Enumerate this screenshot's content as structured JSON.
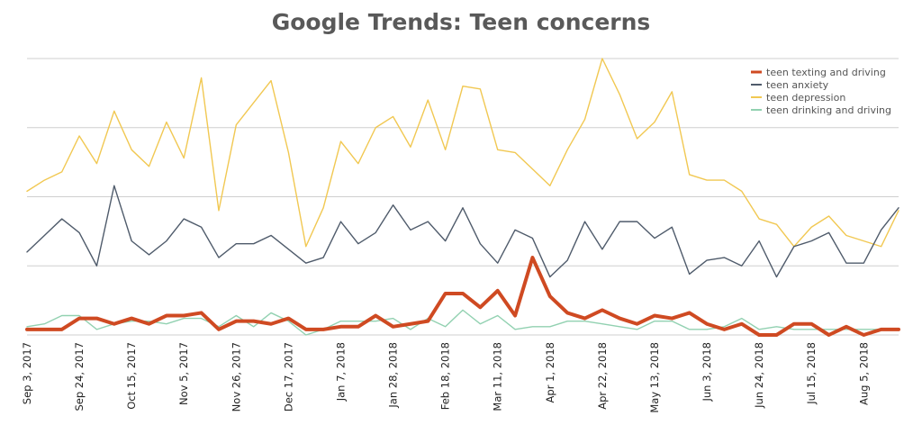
{
  "chart_data": {
    "type": "line",
    "title": "Google Trends: Teen concerns",
    "xlabel": "",
    "ylabel": "",
    "ylim": [
      0,
      100
    ],
    "grid": true,
    "legend_position": "top-right",
    "x": [
      "Sep 3, 2017",
      "Sep 10, 2017",
      "Sep 17, 2017",
      "Sep 24, 2017",
      "Oct 1, 2017",
      "Oct 8, 2017",
      "Oct 15, 2017",
      "Oct 22, 2017",
      "Oct 29, 2017",
      "Nov 5, 2017",
      "Nov 12, 2017",
      "Nov 19, 2017",
      "Nov 26, 2017",
      "Dec 3, 2017",
      "Dec 10, 2017",
      "Dec 17, 2017",
      "Dec 24, 2017",
      "Dec 31, 2017",
      "Jan 7, 2018",
      "Jan 14, 2018",
      "Jan 21, 2018",
      "Jan 28, 2018",
      "Feb 4, 2018",
      "Feb 11, 2018",
      "Feb 18, 2018",
      "Feb 25, 2018",
      "Mar 4, 2018",
      "Mar 11, 2018",
      "Mar 18, 2018",
      "Mar 25, 2018",
      "Apr 1, 2018",
      "Apr 8, 2018",
      "Apr 15, 2018",
      "Apr 22, 2018",
      "Apr 29, 2018",
      "May 6, 2018",
      "May 13, 2018",
      "May 20, 2018",
      "May 27, 2018",
      "Jun 3, 2018",
      "Jun 10, 2018",
      "Jun 17, 2018",
      "Jun 24, 2018",
      "Jul 1, 2018",
      "Jul 8, 2018",
      "Jul 15, 2018",
      "Jul 22, 2018",
      "Jul 29, 2018",
      "Aug 5, 2018",
      "Aug 12, 2018",
      "Aug 19, 2018"
    ],
    "tick_labels": [
      "Sep 3, 2017",
      "Sep 24, 2017",
      "Oct 15, 2017",
      "Nov 5, 2017",
      "Nov 26, 2017",
      "Dec 17, 2017",
      "Jan 7, 2018",
      "Jan 28, 2018",
      "Feb 18, 2018",
      "Mar 11, 2018",
      "Apr 1, 2018",
      "Apr 22, 2018",
      "May 13, 2018",
      "Jun 3, 2018",
      "Jun 24, 2018",
      "Jul 15, 2018",
      "Aug 5, 2018"
    ],
    "series": [
      {
        "name": "teen texting and driving",
        "color": "#cf4a22",
        "values": [
          2,
          2,
          2,
          6,
          6,
          4,
          6,
          4,
          7,
          7,
          8,
          2,
          5,
          5,
          4,
          6,
          2,
          2,
          3,
          3,
          7,
          3,
          4,
          5,
          15,
          15,
          10,
          16,
          7,
          28,
          14,
          8,
          6,
          9,
          6,
          4,
          7,
          6,
          8,
          4,
          2,
          4,
          0,
          0,
          4,
          4,
          0,
          3,
          0,
          2,
          2
        ]
      },
      {
        "name": "teen anxiety",
        "color": "#4f5b6b",
        "values": [
          30,
          36,
          42,
          37,
          25,
          54,
          34,
          29,
          34,
          42,
          39,
          28,
          33,
          33,
          36,
          31,
          26,
          28,
          41,
          33,
          37,
          47,
          38,
          41,
          34,
          46,
          33,
          26,
          38,
          35,
          21,
          27,
          41,
          31,
          41,
          41,
          35,
          39,
          22,
          27,
          28,
          25,
          34,
          21,
          32,
          34,
          37,
          26,
          26,
          38,
          46
        ]
      },
      {
        "name": "teen depression",
        "color": "#f1c852",
        "values": [
          52,
          56,
          59,
          72,
          62,
          81,
          67,
          61,
          77,
          64,
          93,
          45,
          76,
          84,
          92,
          66,
          32,
          46,
          70,
          62,
          75,
          79,
          68,
          85,
          67,
          90,
          89,
          67,
          66,
          60,
          54,
          67,
          78,
          100,
          87,
          71,
          77,
          88,
          58,
          56,
          56,
          52,
          42,
          40,
          32,
          39,
          43,
          36,
          34,
          32,
          45
        ]
      },
      {
        "name": "teen drinking and driving",
        "color": "#92d1b1",
        "values": [
          3,
          4,
          7,
          7,
          2,
          4,
          5,
          5,
          4,
          6,
          6,
          3,
          7,
          3,
          8,
          5,
          0,
          2,
          5,
          5,
          5,
          6,
          2,
          6,
          3,
          9,
          4,
          7,
          2,
          3,
          3,
          5,
          5,
          4,
          3,
          2,
          5,
          5,
          2,
          2,
          3,
          6,
          2,
          3,
          2,
          2,
          2,
          2,
          2,
          2,
          2
        ]
      }
    ]
  }
}
